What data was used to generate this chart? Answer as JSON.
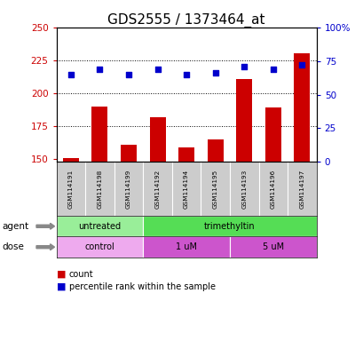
{
  "title": "GDS2555 / 1373464_at",
  "samples": [
    "GSM114191",
    "GSM114198",
    "GSM114199",
    "GSM114192",
    "GSM114194",
    "GSM114195",
    "GSM114193",
    "GSM114196",
    "GSM114197"
  ],
  "counts": [
    151,
    190,
    161,
    182,
    159,
    165,
    211,
    189,
    230
  ],
  "percentiles": [
    65,
    69,
    65,
    69,
    65,
    66,
    71,
    69,
    72
  ],
  "ylim_left": [
    148,
    250
  ],
  "ylim_right": [
    0,
    100
  ],
  "yticks_left": [
    150,
    175,
    200,
    225,
    250
  ],
  "yticks_right": [
    0,
    25,
    50,
    75,
    100
  ],
  "ytick_labels_right": [
    "0",
    "25",
    "50",
    "75",
    "100%"
  ],
  "bar_color": "#cc0000",
  "scatter_color": "#0000cc",
  "agent_groups": [
    {
      "label": "untreated",
      "start": 0,
      "end": 3,
      "color": "#99ee99"
    },
    {
      "label": "trimethyltin",
      "start": 3,
      "end": 9,
      "color": "#55dd55"
    }
  ],
  "dose_groups": [
    {
      "label": "control",
      "start": 0,
      "end": 3,
      "color": "#eeaaee"
    },
    {
      "label": "1 uM",
      "start": 3,
      "end": 6,
      "color": "#cc55cc"
    },
    {
      "label": "5 uM",
      "start": 6,
      "end": 9,
      "color": "#cc55cc"
    }
  ],
  "legend_items": [
    {
      "label": "count",
      "color": "#cc0000"
    },
    {
      "label": "percentile rank within the sample",
      "color": "#0000cc"
    }
  ],
  "sample_bg": "#cccccc",
  "background_color": "white",
  "title_fontsize": 11
}
